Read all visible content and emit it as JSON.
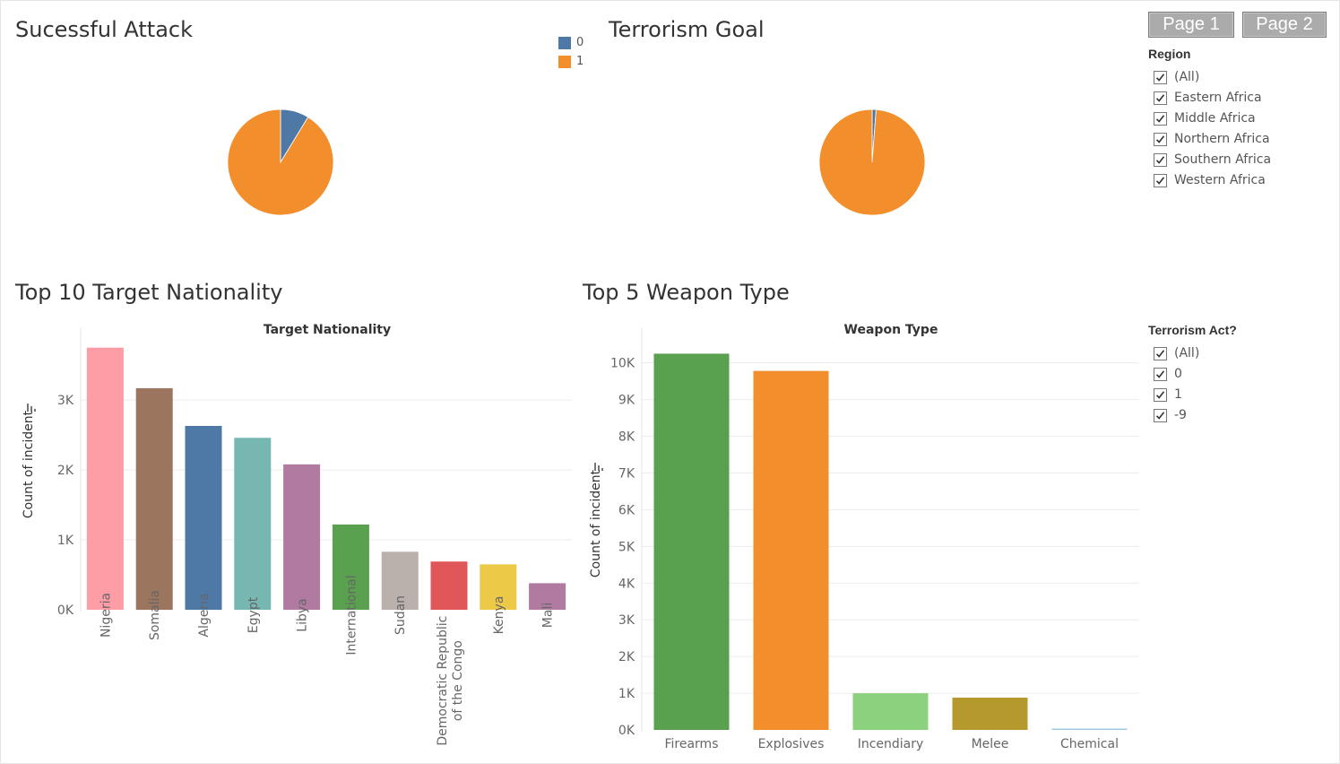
{
  "colors": {
    "blue": "#4e79a7",
    "orange": "#f28e2b",
    "nationality_bars": [
      "#ff9da7",
      "#9c755f",
      "#4e79a7",
      "#76b7b2",
      "#b07aa1",
      "#59a14f",
      "#bab0ac",
      "#e15759",
      "#edc948",
      "#b07aa1"
    ],
    "weapon_bars": [
      "#59a14f",
      "#f28e2b",
      "#8cd17d",
      "#b6992d",
      "#a0cbe8"
    ]
  },
  "buttons": {
    "page1": "Page 1",
    "page2": "Page 2"
  },
  "legend": {
    "items": [
      {
        "label": "0",
        "color": "#4e79a7"
      },
      {
        "label": "1",
        "color": "#f28e2b"
      }
    ]
  },
  "region_filter": {
    "title": "Region",
    "items": [
      "(All)",
      "Eastern Africa",
      "Middle Africa",
      "Northern Africa",
      "Southern Africa",
      "Western Africa"
    ]
  },
  "terrorism_filter": {
    "title": "Terrorism Act?",
    "items": [
      "(All)",
      "0",
      "1",
      "-9"
    ]
  },
  "chart_data": [
    {
      "type": "pie",
      "title": "Sucessful Attack",
      "categories": [
        "0",
        "1"
      ],
      "values": [
        0.087,
        0.913
      ]
    },
    {
      "type": "pie",
      "title": "Terrorism Goal",
      "categories": [
        "0",
        "1"
      ],
      "values": [
        0.012,
        0.988
      ]
    },
    {
      "type": "bar",
      "title": "Top 10 Target Nationality",
      "subtitle": "Target Nationality",
      "ylabel": "Count of incident",
      "categories": [
        "Nigeria",
        "Somalia",
        "Algeria",
        "Egypt",
        "Libya",
        "International",
        "Sudan",
        "Democratic Republic of the Congo",
        "Kenya",
        "Mali"
      ],
      "values": [
        3750,
        3170,
        2630,
        2460,
        2080,
        1220,
        830,
        690,
        650,
        380
      ],
      "ylim": [
        0,
        3900
      ],
      "yticks": [
        0,
        1000,
        2000,
        3000
      ],
      "yticklabels": [
        "0K",
        "1K",
        "2K",
        "3K"
      ]
    },
    {
      "type": "bar",
      "title": "Top 5 Weapon Type",
      "subtitle": "Weapon Type",
      "ylabel": "Count of incident",
      "categories": [
        "Firearms",
        "Explosives",
        "Incendiary",
        "Melee",
        "Chemical"
      ],
      "values": [
        10250,
        9780,
        1000,
        880,
        30
      ],
      "ylim": [
        0,
        10700
      ],
      "yticks": [
        0,
        1000,
        2000,
        3000,
        4000,
        5000,
        6000,
        7000,
        8000,
        9000,
        10000
      ],
      "yticklabels": [
        "0K",
        "1K",
        "2K",
        "3K",
        "4K",
        "5K",
        "6K",
        "7K",
        "8K",
        "9K",
        "10K"
      ]
    }
  ]
}
